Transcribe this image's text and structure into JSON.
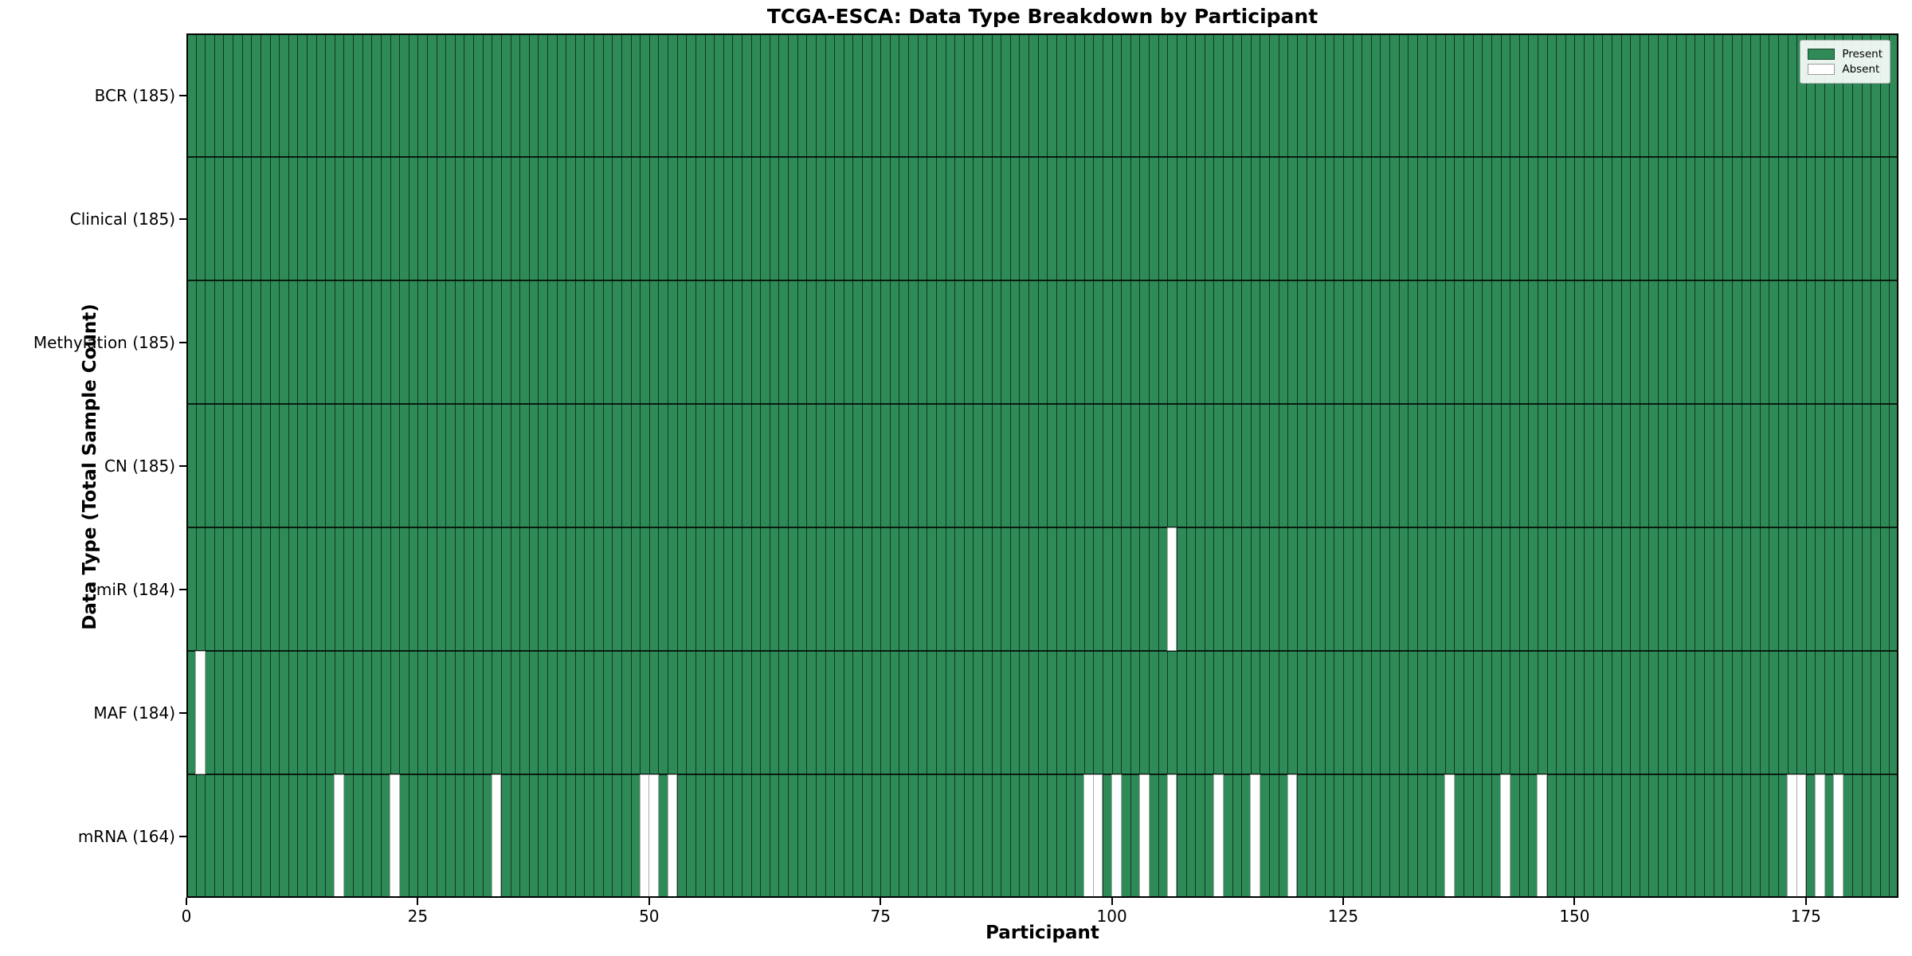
{
  "title": "TCGA-ESCA: Data Type Breakdown by Participant",
  "xlabel": "Participant",
  "ylabel": "Data Type (Total Sample Count)",
  "legend": {
    "present_label": "Present",
    "absent_label": "Absent"
  },
  "colors": {
    "present": "#2e8b57",
    "absent": "#ffffff",
    "bar_edge": "rgba(0,0,0,0.60)",
    "row_separator": "rgba(0,0,0,0.80)",
    "absent_edge": "#ababab",
    "axis": "#000000"
  },
  "chart_data": {
    "type": "heatmap",
    "title": "TCGA-ESCA: Data Type Breakdown by Participant",
    "xlabel": "Participant",
    "ylabel": "Data Type (Total Sample Count)",
    "n_participants": 185,
    "xlim": [
      0,
      185
    ],
    "x_ticks": [
      0,
      25,
      50,
      75,
      100,
      125,
      150,
      175
    ],
    "grid": "per-participant vertical cell edges",
    "legend_position": "upper right",
    "legend_entries": [
      {
        "label": "Present",
        "color": "#2e8b57"
      },
      {
        "label": "Absent",
        "color": "#ffffff"
      }
    ],
    "rows": [
      {
        "label": "BCR (185)",
        "data_type": "BCR",
        "total_sample_count": 185,
        "absent_participants": []
      },
      {
        "label": "Clinical (185)",
        "data_type": "Clinical",
        "total_sample_count": 185,
        "absent_participants": []
      },
      {
        "label": "Methylation (185)",
        "data_type": "Methylation",
        "total_sample_count": 185,
        "absent_participants": []
      },
      {
        "label": "CN (185)",
        "data_type": "CN",
        "total_sample_count": 185,
        "absent_participants": []
      },
      {
        "label": "miR (184)",
        "data_type": "miR",
        "total_sample_count": 184,
        "absent_participants": [
          106
        ]
      },
      {
        "label": "MAF (184)",
        "data_type": "MAF",
        "total_sample_count": 184,
        "absent_participants": [
          1
        ]
      },
      {
        "label": "mRNA (164)",
        "data_type": "mRNA",
        "total_sample_count": 164,
        "absent_participants": [
          16,
          22,
          33,
          49,
          50,
          52,
          97,
          98,
          100,
          103,
          106,
          111,
          115,
          119,
          136,
          142,
          146,
          173,
          174,
          176,
          178
        ]
      }
    ]
  }
}
